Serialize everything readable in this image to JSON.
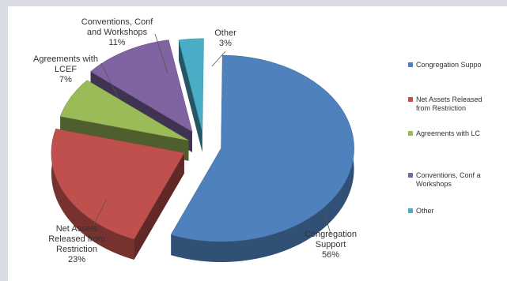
{
  "chart_data": {
    "type": "pie",
    "three_d": true,
    "exploded": true,
    "legend_position": "right",
    "slices": [
      {
        "name": "Congregation Support",
        "value": 56,
        "label_lines": [
          "Congregation",
          "Support",
          "56%"
        ],
        "legend_lines": [
          "Congregation Suppo"
        ],
        "color": "#4f81bd"
      },
      {
        "name": "Net Assets Released from Restriction",
        "value": 23,
        "label_lines": [
          "Net Assets",
          "Released from",
          "Restriction",
          "23%"
        ],
        "legend_lines": [
          "Net Assets Released",
          "from Restriction"
        ],
        "color": "#c0504d"
      },
      {
        "name": "Agreements with LCEF",
        "value": 7,
        "label_lines": [
          "Agreements with",
          "LCEF",
          "7%"
        ],
        "legend_lines": [
          "Agreements with LC"
        ],
        "color": "#9bbb59"
      },
      {
        "name": "Conventions, Conf and Workshops",
        "value": 11,
        "label_lines": [
          "Conventions, Conf",
          "and Workshops",
          "11%"
        ],
        "legend_lines": [
          "Conventions, Conf a",
          "Workshops"
        ],
        "color": "#8064a2"
      },
      {
        "name": "Other",
        "value": 3,
        "label_lines": [
          "Other",
          "3%"
        ],
        "legend_lines": [
          "Other"
        ],
        "color": "#4bacc6"
      }
    ]
  }
}
